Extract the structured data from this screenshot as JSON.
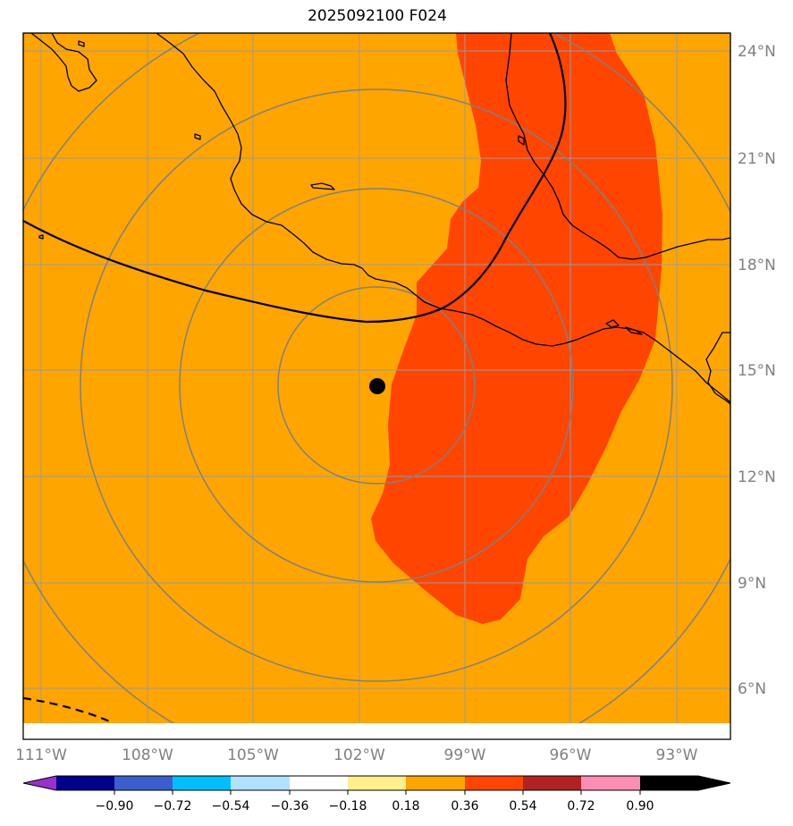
{
  "title": "2025092100 F024",
  "map": {
    "lon_range": [
      -111.7,
      -92.0
    ],
    "lat_range": [
      4.9,
      24.5
    ],
    "lon_ticks": [
      {
        "value": -111,
        "label": "111°W"
      },
      {
        "value": -108,
        "label": "108°W"
      },
      {
        "value": -105,
        "label": "105°W"
      },
      {
        "value": -102,
        "label": "102°W"
      },
      {
        "value": -99,
        "label": "99°W"
      },
      {
        "value": -96,
        "label": "96°W"
      },
      {
        "value": -93,
        "label": "93°W"
      }
    ],
    "lat_ticks": [
      {
        "value": 24,
        "label": "24°N"
      },
      {
        "value": 21,
        "label": "21°N"
      },
      {
        "value": 18,
        "label": "18°N"
      },
      {
        "value": 15,
        "label": "15°N"
      },
      {
        "value": 12,
        "label": "12°N"
      },
      {
        "value": 9,
        "label": "9°N"
      },
      {
        "value": 6,
        "label": "6°N"
      }
    ],
    "center_point": {
      "lon": -101.5,
      "lat": 14.5
    },
    "background_fill_color": "#ffa500",
    "plume_fill_color": "#ff4500",
    "gridline_color": "#9a9a9a",
    "range_ring_color": "#808080",
    "coastline_color": "#000000"
  },
  "colorbar": {
    "segments": [
      {
        "color": "#9932cc"
      },
      {
        "color": "#00008b"
      },
      {
        "color": "#3a5fcd"
      },
      {
        "color": "#00bfff"
      },
      {
        "color": "#b0e2ff"
      },
      {
        "color": "#ffffff"
      },
      {
        "color": "#fff08c"
      },
      {
        "color": "#ffa500"
      },
      {
        "color": "#ff4500"
      },
      {
        "color": "#b22222"
      },
      {
        "color": "#ff8cb4"
      }
    ],
    "tick_labels": [
      "−0.90",
      "−0.72",
      "−0.54",
      "−0.36",
      "−0.18",
      "0.18",
      "0.36",
      "0.54",
      "0.72",
      "0.90"
    ]
  }
}
